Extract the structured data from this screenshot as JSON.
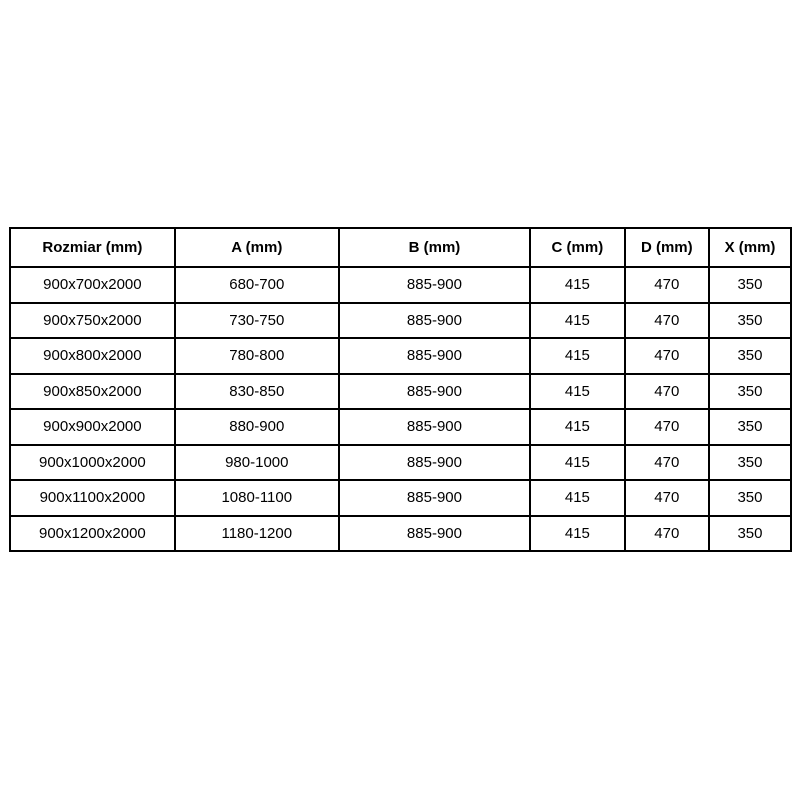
{
  "page": {
    "background_color": "#ffffff",
    "border_color": "#000000",
    "text_color": "#000000"
  },
  "chart_data": {
    "type": "table",
    "columns": [
      "Rozmiar (mm)",
      "A (mm)",
      "B (mm)",
      "C (mm)",
      "D (mm)",
      "X (mm)"
    ],
    "rows": [
      [
        "900x700x2000",
        "680-700",
        "885-900",
        "415",
        "470",
        "350"
      ],
      [
        "900x750x2000",
        "730-750",
        "885-900",
        "415",
        "470",
        "350"
      ],
      [
        "900x800x2000",
        "780-800",
        "885-900",
        "415",
        "470",
        "350"
      ],
      [
        "900x850x2000",
        "830-850",
        "885-900",
        "415",
        "470",
        "350"
      ],
      [
        "900x900x2000",
        "880-900",
        "885-900",
        "415",
        "470",
        "350"
      ],
      [
        "900x1000x2000",
        "980-1000",
        "885-900",
        "415",
        "470",
        "350"
      ],
      [
        "900x1100x2000",
        "1080-1100",
        "885-900",
        "415",
        "470",
        "350"
      ],
      [
        "900x1200x2000",
        "1180-1200",
        "885-900",
        "415",
        "470",
        "350"
      ]
    ]
  }
}
